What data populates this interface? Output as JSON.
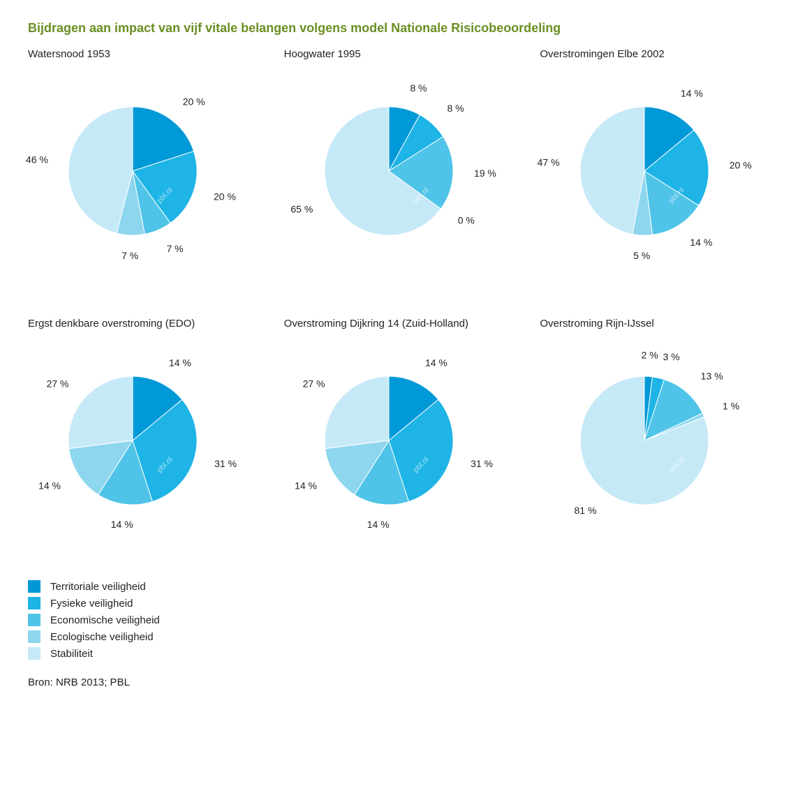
{
  "title": "Bijdragen aan impact van vijf vitale belangen volgens model Nationale Risicobeoordeling",
  "title_color": "#6b8e23",
  "source": "Bron: NRB 2013; PBL",
  "watermark": "pbl.nl",
  "background_color": "#ffffff",
  "pie_radius": 92,
  "pie_center": [
    150,
    130
  ],
  "label_offset": 30,
  "label_fontsize": 14,
  "panel_title_fontsize": 15,
  "categories": [
    {
      "key": "territoriale",
      "label": "Territoriale veiligheid",
      "color": "#0099d8"
    },
    {
      "key": "fysieke",
      "label": "Fysieke veiligheid",
      "color": "#1eb4e6"
    },
    {
      "key": "economische",
      "label": "Economische veiligheid",
      "color": "#4fc4e8"
    },
    {
      "key": "ecologische",
      "label": "Ecologische veiligheid",
      "color": "#8dd6ee"
    },
    {
      "key": "stabiliteit",
      "label": "Stabiliteit",
      "color": "#c6e9f7"
    }
  ],
  "slice_border": {
    "color": "#ffffff",
    "width": 1
  },
  "charts": [
    {
      "title": "Watersnood 1953",
      "slices": [
        {
          "cat": "territoriale",
          "value": 20,
          "label": "20 %"
        },
        {
          "cat": "fysieke",
          "value": 20,
          "label": "20 %"
        },
        {
          "cat": "economische",
          "value": 7,
          "label": "7 %"
        },
        {
          "cat": "ecologische",
          "value": 7,
          "label": "7 %"
        },
        {
          "cat": "stabiliteit",
          "value": 46,
          "label": "46 %"
        }
      ]
    },
    {
      "title": "Hoogwater 1995",
      "slices": [
        {
          "cat": "territoriale",
          "value": 8,
          "label": "8 %"
        },
        {
          "cat": "fysieke",
          "value": 8,
          "label": "8 %"
        },
        {
          "cat": "economische",
          "value": 19,
          "label": "19 %"
        },
        {
          "cat": "ecologische",
          "value": 0,
          "label": "0 %"
        },
        {
          "cat": "stabiliteit",
          "value": 65,
          "label": "65 %"
        }
      ]
    },
    {
      "title": "Overstromingen Elbe 2002",
      "slices": [
        {
          "cat": "territoriale",
          "value": 14,
          "label": "14 %"
        },
        {
          "cat": "fysieke",
          "value": 20,
          "label": "20 %"
        },
        {
          "cat": "economische",
          "value": 14,
          "label": "14 %"
        },
        {
          "cat": "ecologische",
          "value": 5,
          "label": "5 %"
        },
        {
          "cat": "stabiliteit",
          "value": 47,
          "label": "47 %"
        }
      ]
    },
    {
      "title": "Ergst denkbare overstroming (EDO)",
      "slices": [
        {
          "cat": "territoriale",
          "value": 14,
          "label": "14 %"
        },
        {
          "cat": "fysieke",
          "value": 31,
          "label": "31 %"
        },
        {
          "cat": "economische",
          "value": 14,
          "label": "14 %"
        },
        {
          "cat": "ecologische",
          "value": 14,
          "label": "14 %"
        },
        {
          "cat": "stabiliteit",
          "value": 27,
          "label": "27 %"
        }
      ]
    },
    {
      "title": "Overstroming Dijkring 14 (Zuid-Holland)",
      "slices": [
        {
          "cat": "territoriale",
          "value": 14,
          "label": "14 %"
        },
        {
          "cat": "fysieke",
          "value": 31,
          "label": "31 %"
        },
        {
          "cat": "economische",
          "value": 14,
          "label": "14 %"
        },
        {
          "cat": "ecologische",
          "value": 14,
          "label": "14 %"
        },
        {
          "cat": "stabiliteit",
          "value": 27,
          "label": "27 %"
        }
      ]
    },
    {
      "title": "Overstroming Rijn-IJssel",
      "slices": [
        {
          "cat": "territoriale",
          "value": 2,
          "label": "2 %"
        },
        {
          "cat": "fysieke",
          "value": 3,
          "label": "3 %"
        },
        {
          "cat": "economische",
          "value": 13,
          "label": "13 %"
        },
        {
          "cat": "ecologische",
          "value": 1,
          "label": "1 %"
        },
        {
          "cat": "stabiliteit",
          "value": 81,
          "label": "81 %"
        }
      ]
    }
  ]
}
